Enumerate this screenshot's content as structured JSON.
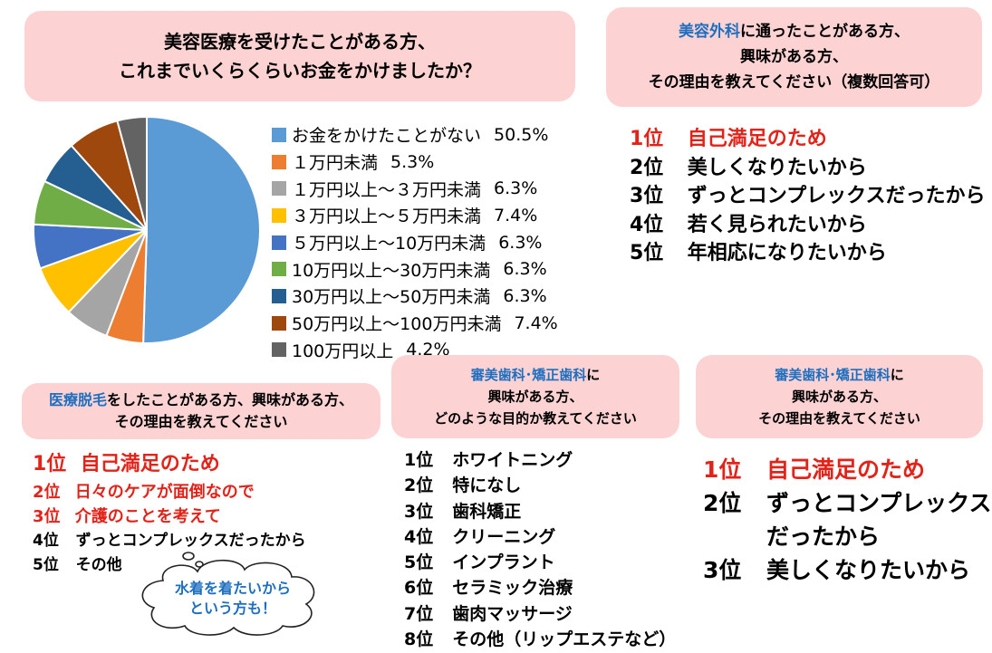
{
  "title_panel": {
    "line1": "美容医療を受けたことがある方、",
    "line2": "これまでいくらくらいお金をかけましたか？"
  },
  "chart_data": {
    "type": "pie",
    "title": "美容医療を受けたことがある方、これまでいくらくらいお金をかけましたか？",
    "slices": [
      {
        "label": "お金をかけたことがない",
        "value": 50.5,
        "value_text": "50.5%",
        "color": "#5b9bd5"
      },
      {
        "label": "１万円未満",
        "value": 5.3,
        "value_text": "5.3%",
        "color": "#ed7d31"
      },
      {
        "label": "１万円以上～３万円未満",
        "value": 6.3,
        "value_text": "6.3%",
        "color": "#a5a5a5"
      },
      {
        "label": "３万円以上～５万円未満",
        "value": 7.4,
        "value_text": "7.4%",
        "color": "#ffc000"
      },
      {
        "label": "５万円以上～10万円未満",
        "value": 6.3,
        "value_text": "6.3%",
        "color": "#4472c4"
      },
      {
        "label": "10万円以上～30万円未満",
        "value": 6.3,
        "value_text": "6.3%",
        "color": "#70ad47"
      },
      {
        "label": "30万円以上～50万円未満",
        "value": 6.3,
        "value_text": "6.3%",
        "color": "#255e91"
      },
      {
        "label": "50万円以上～100万円未満",
        "value": 7.4,
        "value_text": "7.4%",
        "color": "#9e480e"
      },
      {
        "label": "100万円以上",
        "value": 4.2,
        "value_text": "4.2%",
        "color": "#636363"
      }
    ],
    "legend_position": "right"
  },
  "surgery_panel": {
    "line1_blue": "美容外科",
    "line1_rest": "に通ったことがある方、",
    "line2": "興味がある方、",
    "line3": "その理由を教えてください（複数回答可）"
  },
  "surgery_ranks": [
    {
      "rank": "1位",
      "text": "自己満足のため"
    },
    {
      "rank": "2位",
      "text": "美しくなりたいから"
    },
    {
      "rank": "3位",
      "text": "ずっとコンプレックスだったから"
    },
    {
      "rank": "4位",
      "text": "若く見られたいから"
    },
    {
      "rank": "5位",
      "text": "年相応になりたいから"
    }
  ],
  "hair_panel": {
    "line1_blue": "医療脱毛",
    "line1_rest": "をしたことがある方、興味がある方、",
    "line2": "その理由を教えてください"
  },
  "hair_ranks": [
    {
      "rank": "1位",
      "text": "自己満足のため"
    },
    {
      "rank": "2位",
      "text": "日々のケアが面倒なので"
    },
    {
      "rank": "3位",
      "text": "介護のことを考えて"
    },
    {
      "rank": "4位",
      "text": "ずっとコンプレックスだったから"
    },
    {
      "rank": "5位",
      "text": "その他"
    }
  ],
  "cloud": {
    "line1": "水着を着たいから",
    "line2": "という方も！"
  },
  "dental_purpose_panel": {
    "line1_blue": "審美歯科･矯正歯科",
    "line1_rest": "に",
    "line2": "興味がある方、",
    "line3": "どのような目的か教えてください"
  },
  "dental_purpose_ranks": [
    {
      "rank": "1位",
      "text": "ホワイトニング"
    },
    {
      "rank": "2位",
      "text": "特になし"
    },
    {
      "rank": "3位",
      "text": "歯科矯正"
    },
    {
      "rank": "4位",
      "text": "クリーニング"
    },
    {
      "rank": "5位",
      "text": "インプラント"
    },
    {
      "rank": "6位",
      "text": "セラミック治療"
    },
    {
      "rank": "7位",
      "text": "歯肉マッサージ"
    },
    {
      "rank": "8位",
      "text": "その他（リップエステなど）"
    }
  ],
  "dental_reason_panel": {
    "line1_blue": "審美歯科･矯正歯科",
    "line1_rest": "に",
    "line2": "興味がある方、",
    "line3": "その理由を教えてください"
  },
  "dental_reason_ranks": [
    {
      "rank": "1位",
      "text": "自己満足のため"
    },
    {
      "rank": "2位",
      "text": "ずっとコンプレックス",
      "text2": "だったから"
    },
    {
      "rank": "3位",
      "text": "美しくなりたいから"
    }
  ],
  "colors": {
    "panel_bg": "#fcd2d2",
    "accent_blue": "#1f6fc0",
    "accent_red": "#e2231a"
  }
}
